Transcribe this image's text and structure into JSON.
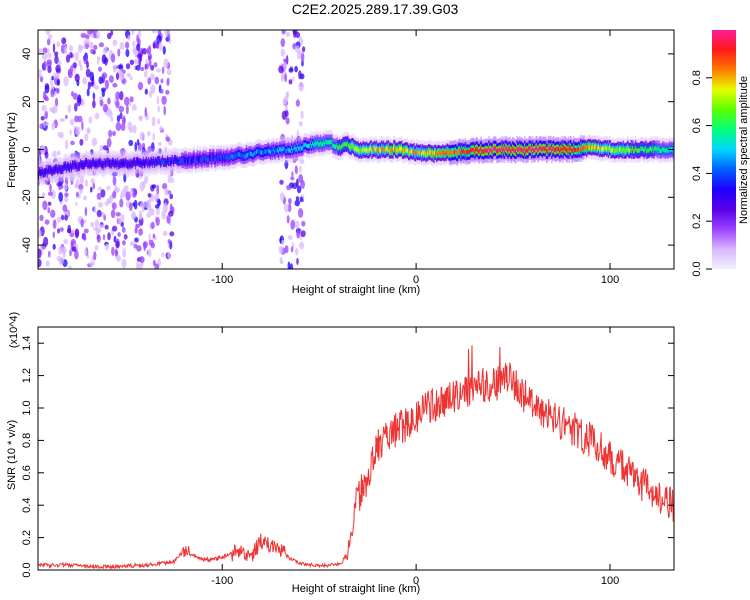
{
  "title": "C2E2.2025.289.17.39.G03",
  "colors": {
    "line": "#ee3333",
    "axis": "#000000",
    "rainbow": [
      "#f0f0ff",
      "#d9b8ff",
      "#9a40ff",
      "#5a00e8",
      "#1e00ff",
      "#0060ff",
      "#00d7ff",
      "#00ff7a",
      "#5cff00",
      "#e6ff00",
      "#ff7a00",
      "#ff1a1a",
      "#ff1c9a"
    ]
  },
  "chart_data": [
    {
      "type": "heatmap",
      "panel": "top",
      "xlabel": "Height of straight line (km)",
      "ylabel": "Frequency (Hz)",
      "xlim": [
        -195,
        133
      ],
      "ylim": [
        -50,
        50
      ],
      "xticks": [
        -100,
        0,
        100
      ],
      "yticks": [
        -40,
        -20,
        0,
        20,
        40
      ],
      "colorbar": {
        "label": "Normalized spectral amplitude",
        "range": [
          0,
          1
        ],
        "ticks": [
          "0.0",
          "0.2",
          "0.4",
          "0.6",
          "0.8"
        ]
      },
      "ridge_frequency": {
        "x": [
          -195,
          -185,
          -170,
          -150,
          -130,
          -110,
          -95,
          -80,
          -65,
          -55,
          -45,
          -40,
          -35,
          -30,
          -20,
          -10,
          0,
          10,
          20,
          40,
          60,
          80,
          90,
          100,
          110,
          120,
          133
        ],
        "y": [
          -10,
          -8,
          -6,
          -6,
          -5,
          -4,
          -3,
          -1,
          0,
          2,
          3,
          1,
          2,
          0,
          0,
          0,
          -1,
          -2,
          -1,
          0,
          0,
          0,
          1,
          0,
          0,
          0,
          0
        ]
      },
      "peak_amplitude": {
        "x": [
          -195,
          -150,
          -100,
          -80,
          -60,
          -50,
          -40,
          -30,
          -10,
          0,
          20,
          40,
          60,
          80,
          100,
          133
        ],
        "y": [
          0.3,
          0.3,
          0.4,
          0.45,
          0.5,
          0.55,
          0.6,
          0.7,
          0.8,
          0.75,
          0.85,
          0.95,
          0.95,
          0.9,
          0.7,
          0.55
        ]
      },
      "noise_bands_x": [
        [
          -195,
          -125
        ],
        [
          -70,
          -58
        ]
      ]
    },
    {
      "type": "line",
      "panel": "bottom",
      "xlabel": "Height of straight line (km)",
      "ylabel": "SNR (10 * v/v)",
      "y_multiplier": "(x10^4)",
      "xlim": [
        -195,
        133
      ],
      "ylim": [
        0,
        1.5
      ],
      "xticks": [
        -100,
        0,
        100
      ],
      "yticks": [
        0.0,
        0.2,
        0.4,
        0.6,
        0.8,
        1.0,
        1.2,
        1.4
      ],
      "series": [
        {
          "name": "SNR",
          "x": [
            -195,
            -180,
            -160,
            -140,
            -125,
            -120,
            -112,
            -105,
            -100,
            -95,
            -90,
            -85,
            -80,
            -75,
            -70,
            -65,
            -60,
            -55,
            -48,
            -42,
            -38,
            -35,
            -33,
            -30,
            -28,
            -25,
            -22,
            -18,
            -12,
            -5,
            0,
            5,
            10,
            20,
            30,
            40,
            48,
            52,
            58,
            65,
            70,
            80,
            90,
            100,
            110,
            120,
            127,
            133
          ],
          "values": [
            0.03,
            0.03,
            0.02,
            0.03,
            0.05,
            0.12,
            0.07,
            0.06,
            0.08,
            0.1,
            0.12,
            0.09,
            0.18,
            0.15,
            0.13,
            0.07,
            0.04,
            0.03,
            0.03,
            0.03,
            0.05,
            0.12,
            0.3,
            0.45,
            0.5,
            0.55,
            0.7,
            0.8,
            0.85,
            0.9,
            0.95,
            1.0,
            1.02,
            1.08,
            1.13,
            1.15,
            1.18,
            1.12,
            1.05,
            0.98,
            0.93,
            0.88,
            0.8,
            0.7,
            0.6,
            0.5,
            0.45,
            0.4
          ]
        }
      ]
    }
  ]
}
